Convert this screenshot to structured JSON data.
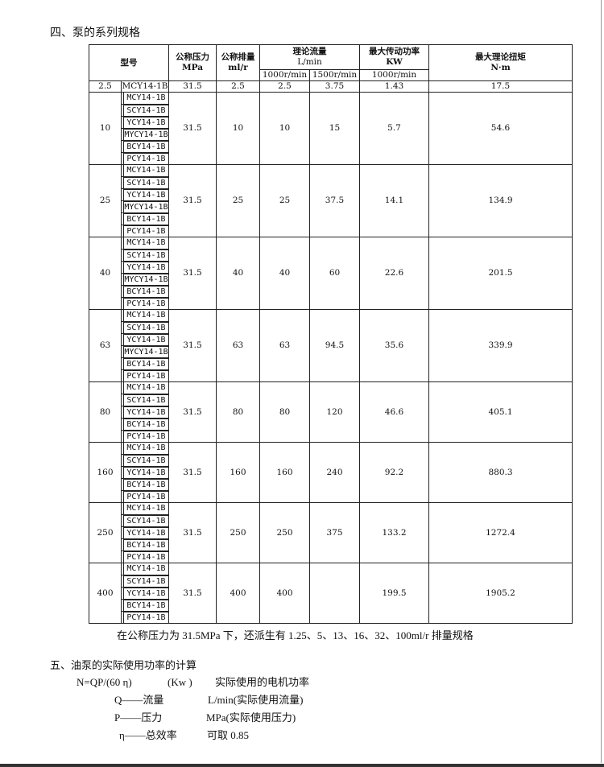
{
  "section4_title": "四、泵的系列规格",
  "table": {
    "headers": {
      "model": "型号",
      "pressure": "公称压力",
      "pressure_unit": "MPa",
      "displacement": "公称排量",
      "displacement_unit": "ml/r",
      "flow": "理论流量",
      "flow_unit": "L/min",
      "flow_1000": "1000r/min",
      "flow_1500": "1500r/min",
      "power": "最大传动功率",
      "power_unit": "KW",
      "power_speed": "1000r/min",
      "torque": "最大理论扭矩",
      "torque_unit": "N·m"
    },
    "groups": [
      {
        "size": "2.5",
        "models": [
          "MCY14-1B"
        ],
        "pressure": "31.5",
        "disp": "2.5",
        "f1000": "2.5",
        "f1500": "3.75",
        "power": "1.43",
        "torque": "17.5"
      },
      {
        "size": "10",
        "models": [
          "MCY14-1B",
          "SCY14-1B",
          "YCY14-1B",
          "MYCY14-1B",
          "BCY14-1B",
          "PCY14-1B"
        ],
        "pressure": "31.5",
        "disp": "10",
        "f1000": "10",
        "f1500": "15",
        "power": "5.7",
        "torque": "54.6"
      },
      {
        "size": "25",
        "models": [
          "MCY14-1B",
          "SCY14-1B",
          "YCY14-1B",
          "MYCY14-1B",
          "BCY14-1B",
          "PCY14-1B"
        ],
        "pressure": "31.5",
        "disp": "25",
        "f1000": "25",
        "f1500": "37.5",
        "power": "14.1",
        "torque": "134.9"
      },
      {
        "size": "40",
        "models": [
          "MCY14-1B",
          "SCY14-1B",
          "YCY14-1B",
          "MYCY14-1B",
          "BCY14-1B",
          "PCY14-1B"
        ],
        "pressure": "31.5",
        "disp": "40",
        "f1000": "40",
        "f1500": "60",
        "power": "22.6",
        "torque": "201.5"
      },
      {
        "size": "63",
        "models": [
          "MCY14-1B",
          "SCY14-1B",
          "YCY14-1B",
          "MYCY14-1B",
          "BCY14-1B",
          "PCY14-1B"
        ],
        "pressure": "31.5",
        "disp": "63",
        "f1000": "63",
        "f1500": "94.5",
        "power": "35.6",
        "torque": "339.9"
      },
      {
        "size": "80",
        "models": [
          "MCY14-1B",
          "SCY14-1B",
          "YCY14-1B",
          "BCY14-1B",
          "PCY14-1B"
        ],
        "pressure": "31.5",
        "disp": "80",
        "f1000": "80",
        "f1500": "120",
        "power": "46.6",
        "torque": "405.1"
      },
      {
        "size": "160",
        "models": [
          "MCY14-1B",
          "SCY14-1B",
          "YCY14-1B",
          "BCY14-1B",
          "PCY14-1B"
        ],
        "pressure": "31.5",
        "disp": "160",
        "f1000": "160",
        "f1500": "240",
        "power": "92.2",
        "torque": "880.3"
      },
      {
        "size": "250",
        "models": [
          "MCY14-1B",
          "SCY14-1B",
          "YCY14-1B",
          "BCY14-1B",
          "PCY14-1B"
        ],
        "pressure": "31.5",
        "disp": "250",
        "f1000": "250",
        "f1500": "375",
        "power": "133.2",
        "torque": "1272.4"
      },
      {
        "size": "400",
        "models": [
          "MCY14-1B",
          "SCY14-1B",
          "YCY14-1B",
          "BCY14-1B",
          "PCY14-1B"
        ],
        "pressure": "31.5",
        "disp": "400",
        "f1000": "400",
        "f1500": "",
        "power": "199.5",
        "torque": "1905.2"
      }
    ]
  },
  "note": "在公称压力为 31.5MPa 下，还派生有 1.25、5、13、16、32、100ml/r 排量规格",
  "section5_title": "五、油泵的实际使用功率的计算",
  "formula": {
    "expr": "N=QP/(60 η)",
    "unit": "(Kw )",
    "desc": "实际使用的电机功率"
  },
  "vars": [
    {
      "sym": "Q——流量",
      "desc": "L/min(实际使用流量)"
    },
    {
      "sym": "P——压力",
      "desc": "MPa(实际使用压力)"
    },
    {
      "sym": "η——总效率",
      "desc": "可取 0.85"
    }
  ]
}
